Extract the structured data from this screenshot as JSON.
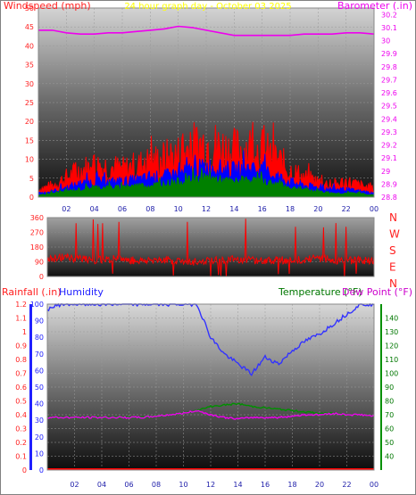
{
  "colors": {
    "wind_red": "#ff0000",
    "wind_blue": "#0000ff",
    "wind_green": "#008000",
    "baro_magenta": "#ee00ee",
    "title_yellow": "#ffff00",
    "humidity_blue": "#3333ff",
    "temp_green": "#009000",
    "rain_red": "#ff0000",
    "title_text": "#ff2020",
    "humidity_text": "#2020ff",
    "temp_text": "#007700",
    "dew_text": "#cc00cc"
  },
  "chart_data": [
    {
      "type": "line",
      "title": "24 hour graph day - October 03 2025",
      "ylabel_left": "Windspeed (mph)",
      "ylabel_right": "Barometer (.in)",
      "x_ticks": [
        "02",
        "04",
        "06",
        "08",
        "10",
        "12",
        "14",
        "16",
        "18",
        "20",
        "22",
        "00"
      ],
      "x": [
        0,
        1,
        2,
        3,
        4,
        5,
        6,
        7,
        8,
        9,
        10,
        11,
        12,
        13,
        14,
        15,
        16,
        17,
        18,
        19,
        20,
        21,
        22,
        23,
        24
      ],
      "ylim_left": [
        0,
        50
      ],
      "y_ticks_left": [
        "0",
        "5",
        "10",
        "15",
        "20",
        "25",
        "30",
        "35",
        "40",
        "45",
        "50"
      ],
      "ylim_right": [
        28.8,
        30.25
      ],
      "y_ticks_right": [
        "28.8",
        "28.9",
        "29",
        "29.1",
        "29.2",
        "29.3",
        "29.4",
        "29.5",
        "29.6",
        "29.7",
        "29.8",
        "29.9",
        "30",
        "30.1",
        "30.2"
      ],
      "series": [
        {
          "key": "gust",
          "color": "#ff0000",
          "values": [
            2,
            3,
            5,
            7,
            8,
            8,
            7,
            8,
            9,
            10,
            11,
            13,
            14,
            13,
            12,
            13,
            12,
            10,
            7,
            5,
            4,
            3,
            4,
            3,
            2
          ]
        },
        {
          "key": "average",
          "color": "#0000ff",
          "values": [
            1,
            1.5,
            2.5,
            3.5,
            4,
            4,
            4,
            4.5,
            5,
            5.5,
            6,
            7,
            8,
            7.5,
            7,
            7.5,
            7,
            5.5,
            4,
            3,
            2.5,
            2,
            2,
            1.5,
            1
          ]
        },
        {
          "key": "low",
          "color": "#008000",
          "values": [
            0.5,
            1,
            1.5,
            2,
            2.5,
            2.5,
            2.5,
            3,
            3,
            3.5,
            4,
            4.5,
            5,
            4.5,
            4,
            4.5,
            4,
            3.5,
            2.5,
            2,
            1.5,
            1,
            1,
            1,
            0.5
          ]
        },
        {
          "key": "barometer",
          "color": "#ee00ee",
          "axis": "right",
          "values": [
            30.08,
            30.08,
            30.06,
            30.05,
            30.05,
            30.06,
            30.06,
            30.07,
            30.08,
            30.09,
            30.11,
            30.1,
            30.08,
            30.06,
            30.04,
            30.04,
            30.04,
            30.04,
            30.04,
            30.05,
            30.05,
            30.05,
            30.06,
            30.06,
            30.05
          ]
        }
      ]
    },
    {
      "type": "line",
      "ylabel_right": [
        "N",
        "W",
        "S",
        "E",
        "N"
      ],
      "ylim": [
        0,
        360
      ],
      "y_ticks": [
        "0",
        "90",
        "180",
        "270",
        "360"
      ],
      "x": [
        0,
        1,
        2,
        3,
        4,
        5,
        6,
        7,
        8,
        9,
        10,
        11,
        12,
        13,
        14,
        15,
        16,
        17,
        18,
        19,
        20,
        21,
        22,
        23,
        24
      ],
      "series": [
        {
          "key": "direction",
          "color": "#ff0000",
          "values": [
            100,
            120,
            110,
            105,
            100,
            110,
            100,
            95,
            105,
            100,
            95,
            90,
            95,
            100,
            105,
            100,
            95,
            100,
            100,
            105,
            110,
            100,
            95,
            100,
            100
          ]
        }
      ]
    },
    {
      "type": "line",
      "ylabel_left_1": "Rainfall (.in)",
      "ylabel_left_2": "Humidity",
      "ylabel_right_1": "Temperature (°F)",
      "ylabel_right_2": "Dew Point (°F)",
      "ylim_rain": [
        0,
        1.2
      ],
      "y_ticks_rain": [
        "0",
        "0.1",
        "0.2",
        "0.3",
        "0.4",
        "0.5",
        "0.6",
        "0.7",
        "0.8",
        "0.9",
        "1",
        "1.1",
        "1.2"
      ],
      "ylim_humidity": [
        0,
        100
      ],
      "y_ticks_humidity": [
        "0",
        "10",
        "20",
        "30",
        "40",
        "50",
        "60",
        "70",
        "80",
        "90",
        "100"
      ],
      "ylim_temp": [
        30,
        150
      ],
      "y_ticks_temp": [
        "40",
        "50",
        "60",
        "70",
        "80",
        "90",
        "100",
        "110",
        "120",
        "130",
        "140"
      ],
      "x_ticks": [
        "02",
        "04",
        "06",
        "08",
        "10",
        "12",
        "14",
        "16",
        "18",
        "20",
        "22",
        "00"
      ],
      "x": [
        0,
        1,
        2,
        3,
        4,
        5,
        6,
        7,
        8,
        9,
        10,
        11,
        12,
        13,
        14,
        15,
        16,
        17,
        18,
        19,
        20,
        21,
        22,
        23,
        24
      ],
      "series": [
        {
          "key": "humidity",
          "color": "#3333ff",
          "axis": "humidity",
          "values": [
            97,
            100,
            100,
            100,
            100,
            100,
            100,
            100,
            100,
            100,
            100,
            100,
            80,
            70,
            64,
            58,
            68,
            64,
            72,
            78,
            82,
            88,
            94,
            100,
            100
          ]
        },
        {
          "key": "temperature",
          "color": "#009000",
          "axis": "temp",
          "values": [
            68,
            68,
            68,
            68,
            68,
            68,
            68,
            68,
            69,
            70,
            71,
            73,
            76,
            77,
            78,
            76,
            75,
            74,
            73,
            72,
            71,
            71,
            70,
            70,
            69
          ]
        },
        {
          "key": "dewpoint",
          "color": "#ee00ee",
          "axis": "temp",
          "values": [
            68,
            68,
            68,
            68,
            68,
            68,
            68,
            68,
            69,
            70,
            71,
            73,
            70,
            68,
            67,
            68,
            68,
            68,
            69,
            70,
            70,
            71,
            70,
            70,
            69
          ]
        },
        {
          "key": "rainfall",
          "color": "#ff0000",
          "axis": "rain",
          "values": [
            0,
            0,
            0,
            0,
            0,
            0,
            0,
            0,
            0,
            0,
            0,
            0,
            0,
            0,
            0,
            0,
            0,
            0,
            0,
            0,
            0,
            0,
            0,
            0,
            0
          ]
        }
      ]
    }
  ]
}
